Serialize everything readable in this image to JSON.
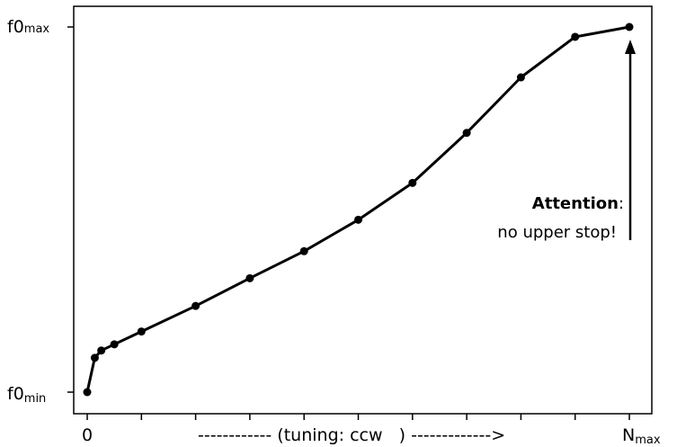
{
  "chart_data": {
    "type": "line",
    "title": "",
    "x_axis": {
      "start_label": "0",
      "end_label_main": "N",
      "end_label_sub": "max",
      "caption": "------------ (tuning: ccw   ) ------------->",
      "range": [
        0,
        10
      ]
    },
    "y_axis": {
      "min_label_main": "f0",
      "min_label_sub": "min",
      "max_label_main": "f0",
      "max_label_sub": "max",
      "range": [
        0,
        1
      ]
    },
    "series": [
      {
        "color": "#000000",
        "points": [
          {
            "x": 0.0,
            "y": 0.0
          },
          {
            "x": 0.14,
            "y": 0.094
          },
          {
            "x": 0.26,
            "y": 0.114
          },
          {
            "x": 0.5,
            "y": 0.131
          },
          {
            "x": 1.0,
            "y": 0.166
          },
          {
            "x": 2.0,
            "y": 0.236
          },
          {
            "x": 3.0,
            "y": 0.312
          },
          {
            "x": 4.0,
            "y": 0.386
          },
          {
            "x": 5.0,
            "y": 0.472
          },
          {
            "x": 6.0,
            "y": 0.573
          },
          {
            "x": 7.0,
            "y": 0.71
          },
          {
            "x": 8.0,
            "y": 0.862
          },
          {
            "x": 9.0,
            "y": 0.973
          },
          {
            "x": 10.0,
            "y": 1.0
          }
        ]
      }
    ],
    "annotation": {
      "bold": "Attention",
      "colon": ":",
      "line2": "no upper stop!"
    },
    "grid": false
  }
}
